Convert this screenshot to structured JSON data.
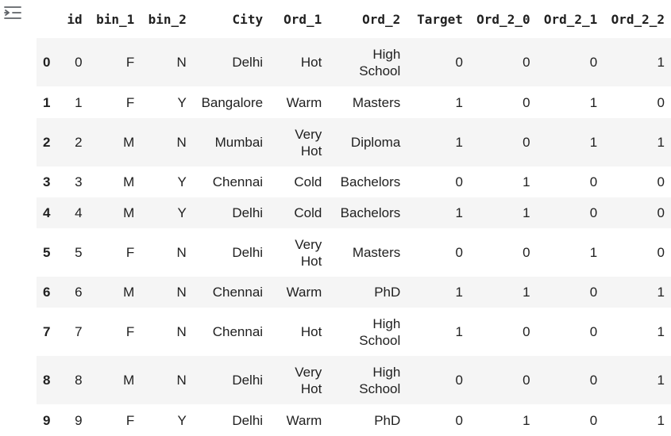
{
  "output": {
    "collapse_icon": "collapse-output-icon"
  },
  "table": {
    "columns": [
      "",
      "id",
      "bin_1",
      "bin_2",
      "City",
      "Ord_1",
      "Ord_2",
      "Target",
      "Ord_2_0",
      "Ord_2_1",
      "Ord_2_2"
    ],
    "rows": [
      {
        "index": "0",
        "id": "0",
        "bin_1": "F",
        "bin_2": "N",
        "City": "Delhi",
        "Ord_1": "Hot",
        "Ord_2": "High School",
        "Target": "0",
        "Ord_2_0": "0",
        "Ord_2_1": "0",
        "Ord_2_2": "1"
      },
      {
        "index": "1",
        "id": "1",
        "bin_1": "F",
        "bin_2": "Y",
        "City": "Bangalore",
        "Ord_1": "Warm",
        "Ord_2": "Masters",
        "Target": "1",
        "Ord_2_0": "0",
        "Ord_2_1": "1",
        "Ord_2_2": "0"
      },
      {
        "index": "2",
        "id": "2",
        "bin_1": "M",
        "bin_2": "N",
        "City": "Mumbai",
        "Ord_1": "Very Hot",
        "Ord_2": "Diploma",
        "Target": "1",
        "Ord_2_0": "0",
        "Ord_2_1": "1",
        "Ord_2_2": "1"
      },
      {
        "index": "3",
        "id": "3",
        "bin_1": "M",
        "bin_2": "Y",
        "City": "Chennai",
        "Ord_1": "Cold",
        "Ord_2": "Bachelors",
        "Target": "0",
        "Ord_2_0": "1",
        "Ord_2_1": "0",
        "Ord_2_2": "0"
      },
      {
        "index": "4",
        "id": "4",
        "bin_1": "M",
        "bin_2": "Y",
        "City": "Delhi",
        "Ord_1": "Cold",
        "Ord_2": "Bachelors",
        "Target": "1",
        "Ord_2_0": "1",
        "Ord_2_1": "0",
        "Ord_2_2": "0"
      },
      {
        "index": "5",
        "id": "5",
        "bin_1": "F",
        "bin_2": "N",
        "City": "Delhi",
        "Ord_1": "Very Hot",
        "Ord_2": "Masters",
        "Target": "0",
        "Ord_2_0": "0",
        "Ord_2_1": "1",
        "Ord_2_2": "0"
      },
      {
        "index": "6",
        "id": "6",
        "bin_1": "M",
        "bin_2": "N",
        "City": "Chennai",
        "Ord_1": "Warm",
        "Ord_2": "PhD",
        "Target": "1",
        "Ord_2_0": "1",
        "Ord_2_1": "0",
        "Ord_2_2": "1"
      },
      {
        "index": "7",
        "id": "7",
        "bin_1": "F",
        "bin_2": "N",
        "City": "Chennai",
        "Ord_1": "Hot",
        "Ord_2": "High School",
        "Target": "1",
        "Ord_2_0": "0",
        "Ord_2_1": "0",
        "Ord_2_2": "1"
      },
      {
        "index": "8",
        "id": "8",
        "bin_1": "M",
        "bin_2": "N",
        "City": "Delhi",
        "Ord_1": "Very Hot",
        "Ord_2": "High School",
        "Target": "0",
        "Ord_2_0": "0",
        "Ord_2_1": "0",
        "Ord_2_2": "1"
      },
      {
        "index": "9",
        "id": "9",
        "bin_1": "F",
        "bin_2": "Y",
        "City": "Delhi",
        "Ord_1": "Warm",
        "Ord_2": "PhD",
        "Target": "0",
        "Ord_2_0": "1",
        "Ord_2_1": "0",
        "Ord_2_2": "1"
      }
    ]
  }
}
